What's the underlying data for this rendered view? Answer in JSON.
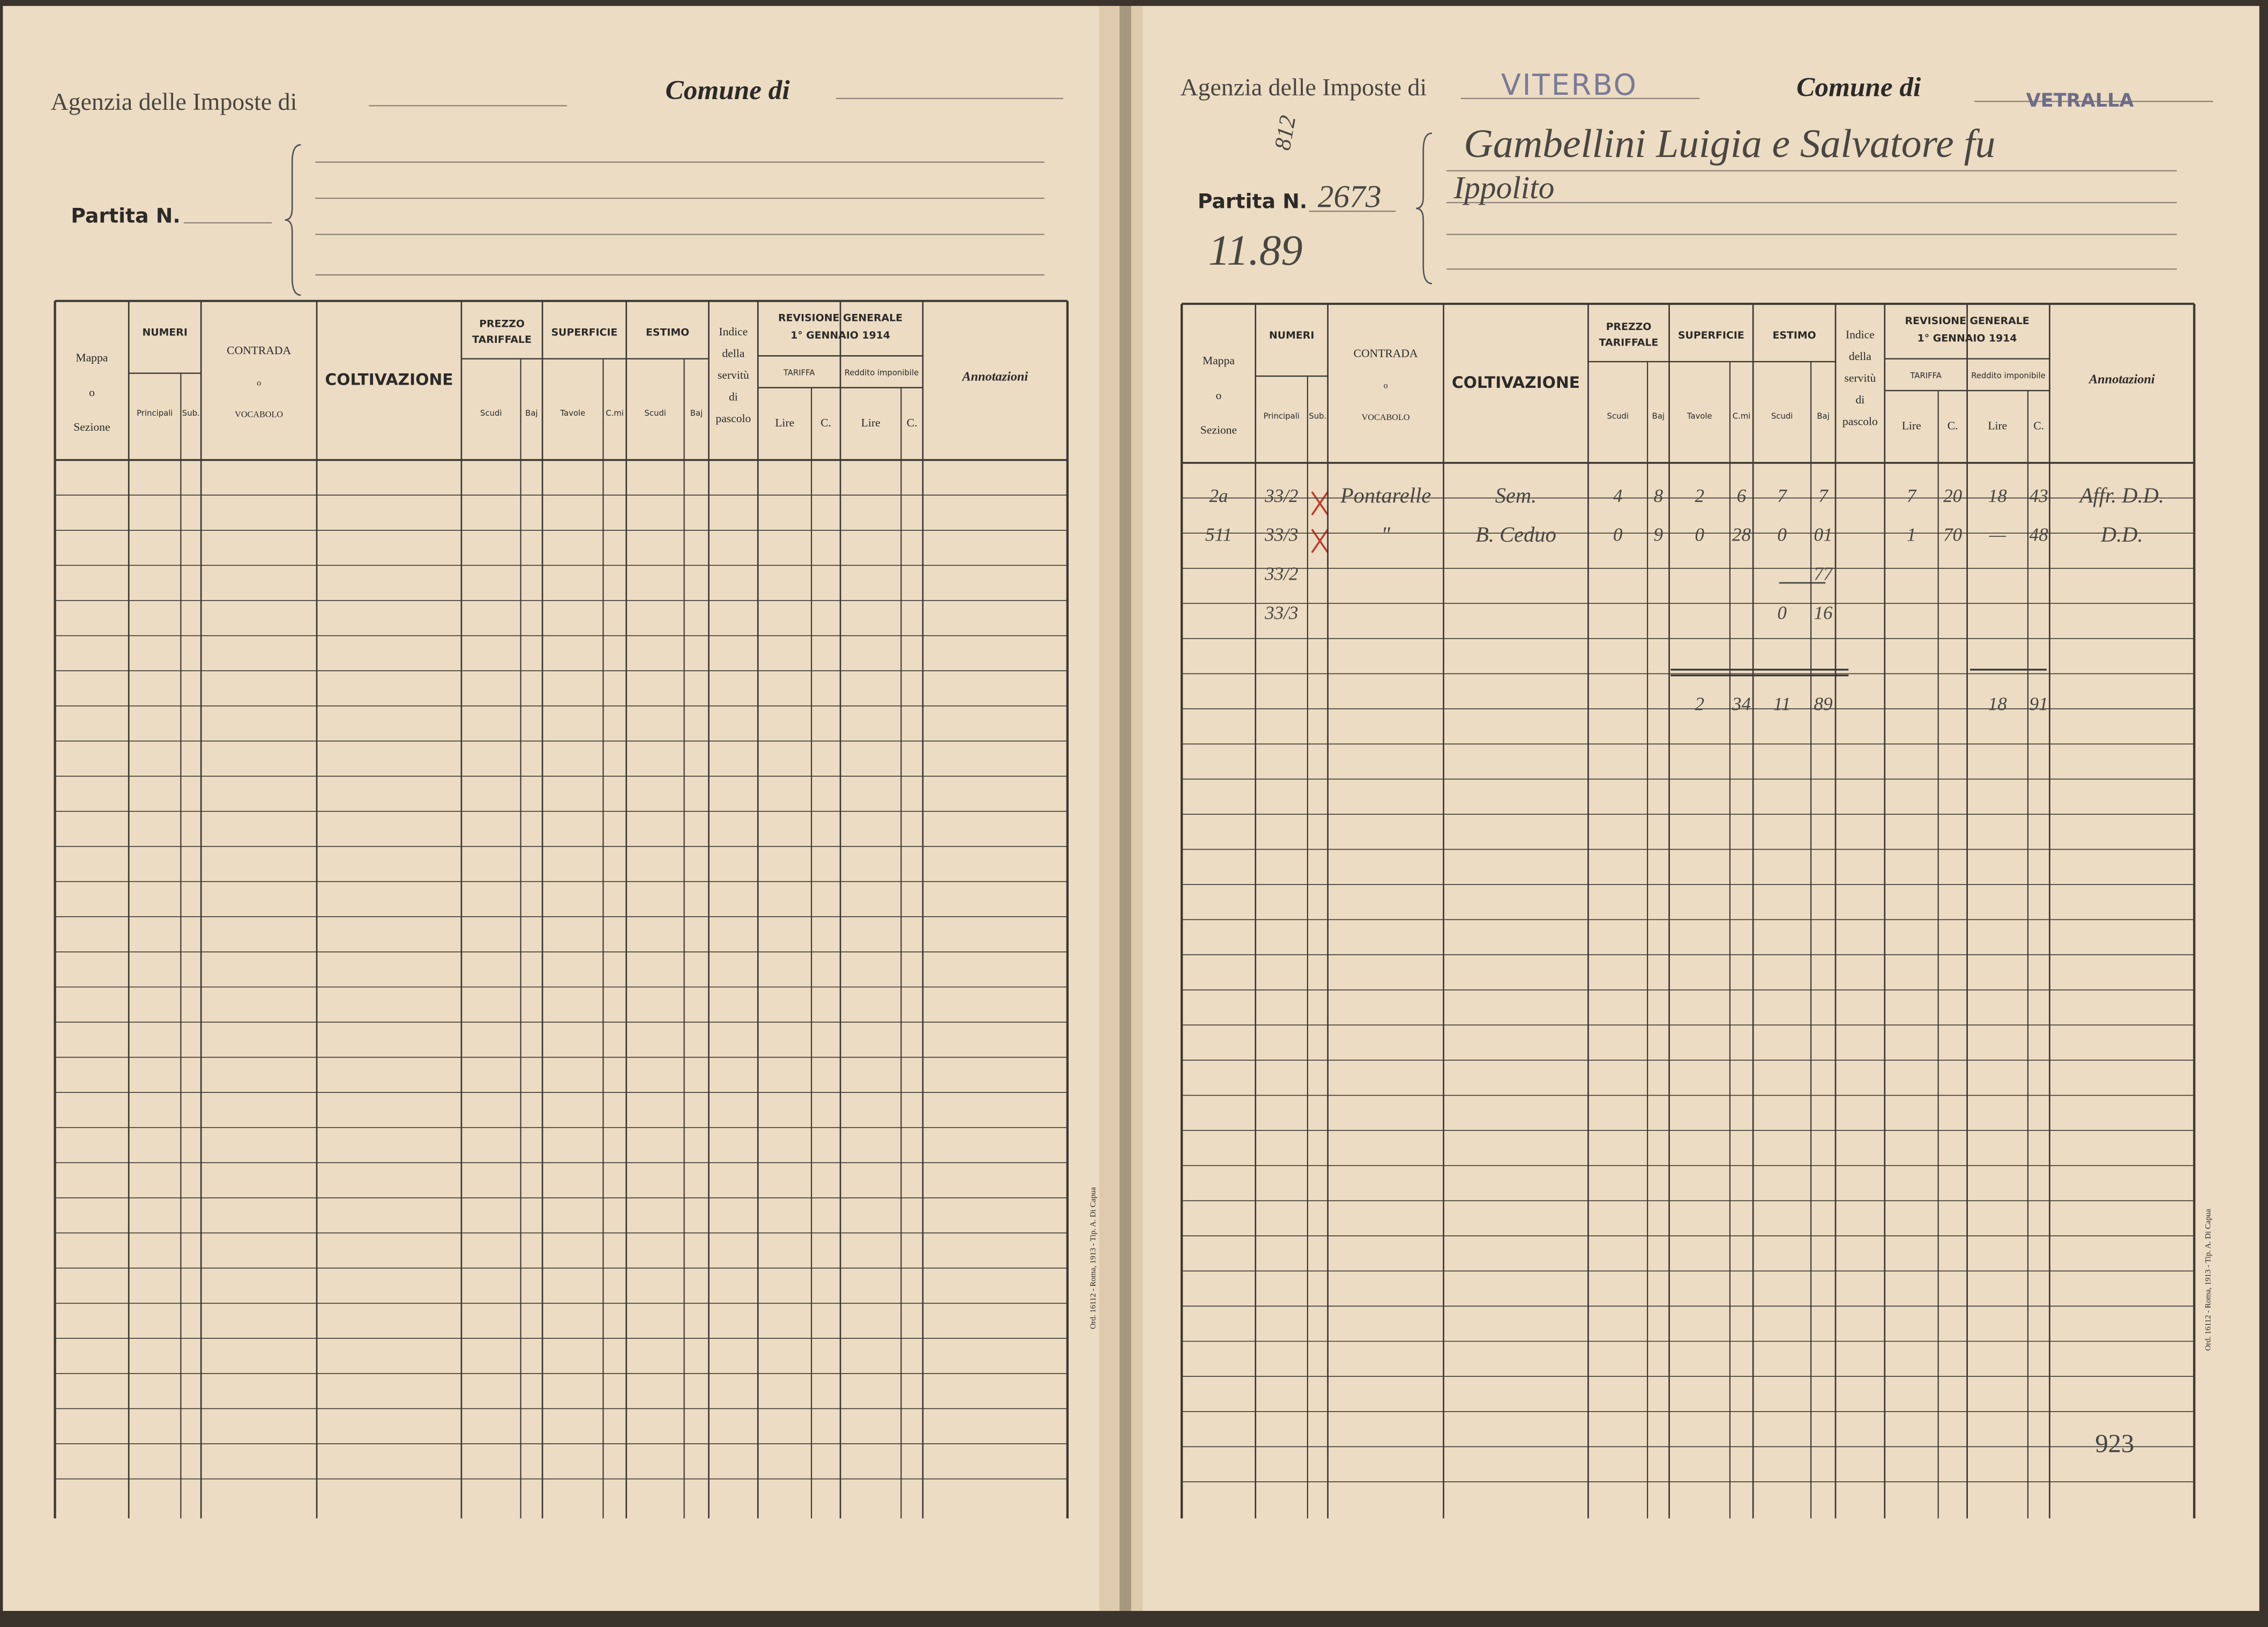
{
  "form": {
    "agency_label": "Agenzia delle Imposte di",
    "comune_label": "Comune di",
    "partita_label": "Partita N.",
    "printer_note": "Ord. 16112 - Roma, 1913 - Tip. A. Di Capua",
    "headers": {
      "mappa": [
        "Mappa",
        "o",
        "Sezione"
      ],
      "numeri": "NUMERI",
      "principali": "Principali",
      "sub": "Sub.",
      "contrada": [
        "CONTRADA",
        "o",
        "VOCABOLO"
      ],
      "coltivazione": "COLTIVAZIONE",
      "prezzo": [
        "PREZZO",
        "TARIFFALE"
      ],
      "superficie": "SUPERFICIE",
      "tavole": "Tavole",
      "cmi": "C.mi",
      "estimo": "ESTIMO",
      "scudi": "Scudi",
      "baj": "Baj",
      "indice": [
        "Indice",
        "della",
        "servitù",
        "di",
        "pascolo"
      ],
      "revisione": [
        "REVISIONE GENERALE",
        "1° GENNAIO 1914"
      ],
      "tariffa": "TARIFFA",
      "reddito": "Reddito imponibile",
      "lire": "Lire",
      "c": "C.",
      "annotazioni": "Annotazioni"
    }
  },
  "right_page": {
    "agency_value": "VITERBO",
    "comune_value": "VETRALLA",
    "partita_value": "2673",
    "margin_number": "812",
    "margin_note": "11.89",
    "owner_lines": [
      "Gambellini Luigia e Salvatore fu",
      "Ippolito"
    ],
    "rows": [
      {
        "mappa": "2a",
        "principali": "33/2",
        "contrada": "Pontarelle",
        "coltivazione": "Sem.",
        "prezzo_scudi": "4",
        "prezzo_baj": "8",
        "sup_tavole": "2",
        "sup_cmi": "6",
        "estimo_scudi": "7",
        "estimo_baj": "7",
        "tariffa_lire": "7",
        "tariffa_c": "20",
        "reddito_lire": "18",
        "reddito_c": "43",
        "annotazioni": "Affr. D.D."
      },
      {
        "mappa": "511",
        "principali": "33/3",
        "contrada": "\"",
        "coltivazione": "B. Ceduo",
        "prezzo_scudi": "0",
        "prezzo_baj": "9",
        "sup_tavole": "0",
        "sup_cmi": "28",
        "estimo_scudi": "0",
        "estimo_baj": "01",
        "tariffa_lire": "1",
        "tariffa_c": "70",
        "reddito_lire": "—",
        "reddito_c": "48",
        "annotazioni": "D.D."
      },
      {
        "principali": "33/2",
        "estimo_baj": "77"
      },
      {
        "principali": "33/3",
        "estimo_scudi": "0",
        "estimo_baj": "16"
      }
    ],
    "totals": {
      "sup_tavole": "2",
      "sup_cmi": "34",
      "estimo_scudi": "11",
      "estimo_baj": "89",
      "reddito_lire": "18",
      "reddito_c": "91"
    },
    "page_number": "923"
  }
}
